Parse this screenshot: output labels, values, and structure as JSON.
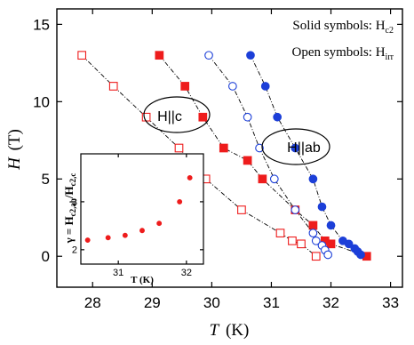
{
  "chart_data": [
    {
      "type": "scatter",
      "title": "",
      "xlabel_italic": "T",
      "xlabel_unit": "(K)",
      "ylabel_italic": "H",
      "ylabel_unit": "(T)",
      "xlim": [
        27.4,
        33.2
      ],
      "ylim": [
        -2.0,
        16.0
      ],
      "xticks": [
        28,
        29,
        30,
        31,
        32,
        33
      ],
      "yticks": [
        0,
        5,
        10,
        15
      ],
      "grid": false,
      "legend_text": {
        "solid_prefix": "Solid symbols: H",
        "solid_sub": "c2",
        "open_prefix": "Open symbols: H",
        "open_sub": "irr"
      },
      "annotations": [
        {
          "text": "H||c",
          "x": 29.55,
          "y": 9.0
        },
        {
          "text": "H||ab",
          "x": 31.75,
          "y": 7.0
        }
      ],
      "series": [
        {
          "group": "H||c",
          "quantity": "Hc2",
          "marker": "square",
          "filled": true,
          "color": "#ee1c1c",
          "x": [
            29.12,
            29.55,
            29.85,
            30.2,
            30.6,
            30.85,
            31.4,
            31.7,
            31.9,
            32.0,
            32.6
          ],
          "y": [
            13.0,
            11.0,
            9.0,
            7.0,
            6.2,
            5.0,
            3.0,
            2.0,
            1.0,
            0.8,
            0.0
          ]
        },
        {
          "group": "H||c",
          "quantity": "Hirr",
          "marker": "square",
          "filled": false,
          "color": "#ee1c1c",
          "x": [
            27.82,
            28.35,
            28.9,
            29.45,
            29.9,
            30.5,
            31.15,
            31.35,
            31.5,
            31.75
          ],
          "y": [
            13.0,
            11.0,
            9.0,
            7.0,
            5.0,
            3.0,
            1.5,
            1.0,
            0.8,
            0.0
          ]
        },
        {
          "group": "H||ab",
          "quantity": "Hc2",
          "marker": "circle",
          "filled": true,
          "color": "#1c3fd8",
          "x": [
            30.65,
            30.9,
            31.1,
            31.4,
            31.7,
            31.85,
            32.0,
            32.2,
            32.3,
            32.4,
            32.45,
            32.5
          ],
          "y": [
            13.0,
            11.0,
            9.0,
            7.0,
            5.0,
            3.2,
            2.0,
            1.0,
            0.8,
            0.5,
            0.3,
            0.1
          ]
        },
        {
          "group": "H||ab",
          "quantity": "Hirr",
          "marker": "circle",
          "filled": false,
          "color": "#1c3fd8",
          "x": [
            29.95,
            30.35,
            30.6,
            30.8,
            31.05,
            31.4,
            31.7,
            31.75,
            31.85,
            31.9,
            31.95
          ],
          "y": [
            13.0,
            11.0,
            9.0,
            7.0,
            5.0,
            3.0,
            1.5,
            1.0,
            0.7,
            0.4,
            0.1
          ]
        }
      ]
    },
    {
      "type": "scatter",
      "role": "inset",
      "title": "",
      "xlabel_italic": "",
      "xlabel_bold": "T (K)",
      "ylabel_gamma": "γ = H",
      "ylabel_sub1": "c2,ab",
      "ylabel_slash": "/H",
      "ylabel_sub2": "c2,c",
      "xlim": [
        30.45,
        32.25
      ],
      "ylim": [
        1.7,
        4.0
      ],
      "xticks": [
        31,
        32
      ],
      "yticks": [
        2,
        3
      ],
      "grid": false,
      "series": [
        {
          "marker": "circle",
          "filled": true,
          "color": "#ee1c1c",
          "x": [
            30.55,
            30.85,
            31.1,
            31.35,
            31.6,
            31.9,
            32.05
          ],
          "y": [
            2.2,
            2.25,
            2.3,
            2.4,
            2.55,
            3.0,
            3.5
          ]
        }
      ]
    }
  ]
}
